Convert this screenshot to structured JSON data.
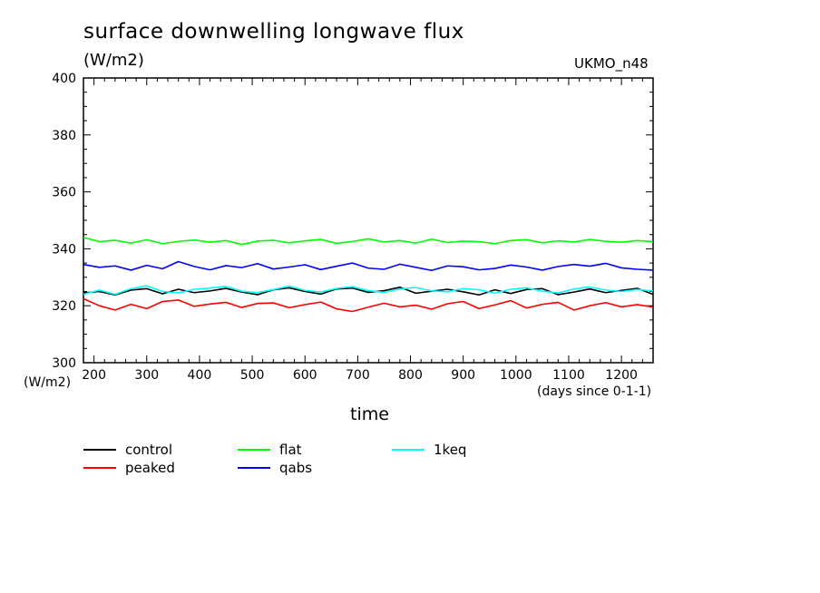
{
  "chart_data": {
    "type": "line",
    "title": "surface downwelling longwave flux",
    "ylabel": "(W/m2)",
    "y_axis_units": "(W/m2)",
    "xlabel": "time",
    "x_axis_units": "(days since 0-1-1)",
    "model_label": "UKMO_n48",
    "xlim": [
      180,
      1260
    ],
    "ylim": [
      300,
      400
    ],
    "x_ticks": [
      200,
      300,
      400,
      500,
      600,
      700,
      800,
      900,
      1000,
      1100,
      1200
    ],
    "y_ticks": [
      300,
      320,
      340,
      360,
      380,
      400
    ],
    "legend": "bottom-left",
    "x": [
      180,
      210,
      240,
      270,
      300,
      330,
      360,
      390,
      420,
      450,
      480,
      510,
      540,
      570,
      600,
      630,
      660,
      690,
      720,
      750,
      780,
      810,
      840,
      870,
      900,
      930,
      960,
      990,
      1020,
      1050,
      1080,
      1110,
      1140,
      1170,
      1200,
      1230,
      1260
    ],
    "series": [
      {
        "name": "control",
        "color": "#000000",
        "values": [
          324.5,
          325.0,
          323.8,
          325.5,
          326.0,
          324.2,
          325.8,
          324.6,
          325.2,
          326.1,
          324.8,
          323.9,
          325.6,
          326.3,
          325.0,
          324.1,
          325.9,
          326.2,
          324.7,
          325.3,
          326.5,
          324.4,
          325.1,
          325.8,
          324.9,
          323.8,
          325.6,
          324.3,
          325.7,
          326.0,
          323.9,
          324.8,
          325.9,
          324.6,
          325.4,
          326.1,
          324.0
        ]
      },
      {
        "name": "peaked",
        "color": "#ff0000",
        "values": [
          322.5,
          320.0,
          318.5,
          320.5,
          319.0,
          321.5,
          322.0,
          319.8,
          320.6,
          321.2,
          319.4,
          320.8,
          321.0,
          319.3,
          320.4,
          321.3,
          318.9,
          318.0,
          319.5,
          320.9,
          319.6,
          320.2,
          318.8,
          320.7,
          321.5,
          319.0,
          320.3,
          321.8,
          319.2,
          320.5,
          321.2,
          318.5,
          320.0,
          321.1,
          319.6,
          320.4,
          319.5
        ]
      },
      {
        "name": "flat",
        "color": "#00ff00",
        "values": [
          344.0,
          342.5,
          343.0,
          342.0,
          343.2,
          341.8,
          342.6,
          343.1,
          342.3,
          342.9,
          341.5,
          342.7,
          343.0,
          342.1,
          342.8,
          343.3,
          341.9,
          342.6,
          343.5,
          342.4,
          342.9,
          342.0,
          343.4,
          342.2,
          342.7,
          342.5,
          341.8,
          342.9,
          343.2,
          342.1,
          342.8,
          342.4,
          343.3,
          342.6,
          342.3,
          342.9,
          342.5
        ]
      },
      {
        "name": "qabs",
        "color": "#0000ff",
        "values": [
          334.5,
          333.5,
          334.0,
          332.5,
          334.2,
          333.0,
          335.5,
          333.8,
          332.6,
          334.1,
          333.4,
          334.8,
          332.9,
          333.6,
          334.4,
          332.7,
          333.9,
          335.0,
          333.2,
          332.8,
          334.6,
          333.5,
          332.4,
          334.0,
          333.7,
          332.6,
          333.1,
          334.3,
          333.6,
          332.5,
          333.8,
          334.5,
          333.9,
          334.9,
          333.3,
          332.8,
          332.5
        ]
      },
      {
        "name": "1keq",
        "color": "#00ffff",
        "values": [
          324.0,
          325.5,
          324.0,
          326.0,
          327.0,
          325.0,
          324.5,
          325.8,
          326.2,
          326.8,
          325.1,
          324.6,
          325.7,
          326.9,
          325.4,
          324.8,
          326.1,
          326.7,
          325.3,
          324.7,
          325.9,
          326.4,
          325.2,
          324.9,
          326.0,
          325.6,
          324.4,
          325.8,
          326.3,
          325.1,
          324.5,
          325.9,
          326.6,
          325.5,
          325.0,
          325.7,
          325.2
        ]
      }
    ]
  }
}
